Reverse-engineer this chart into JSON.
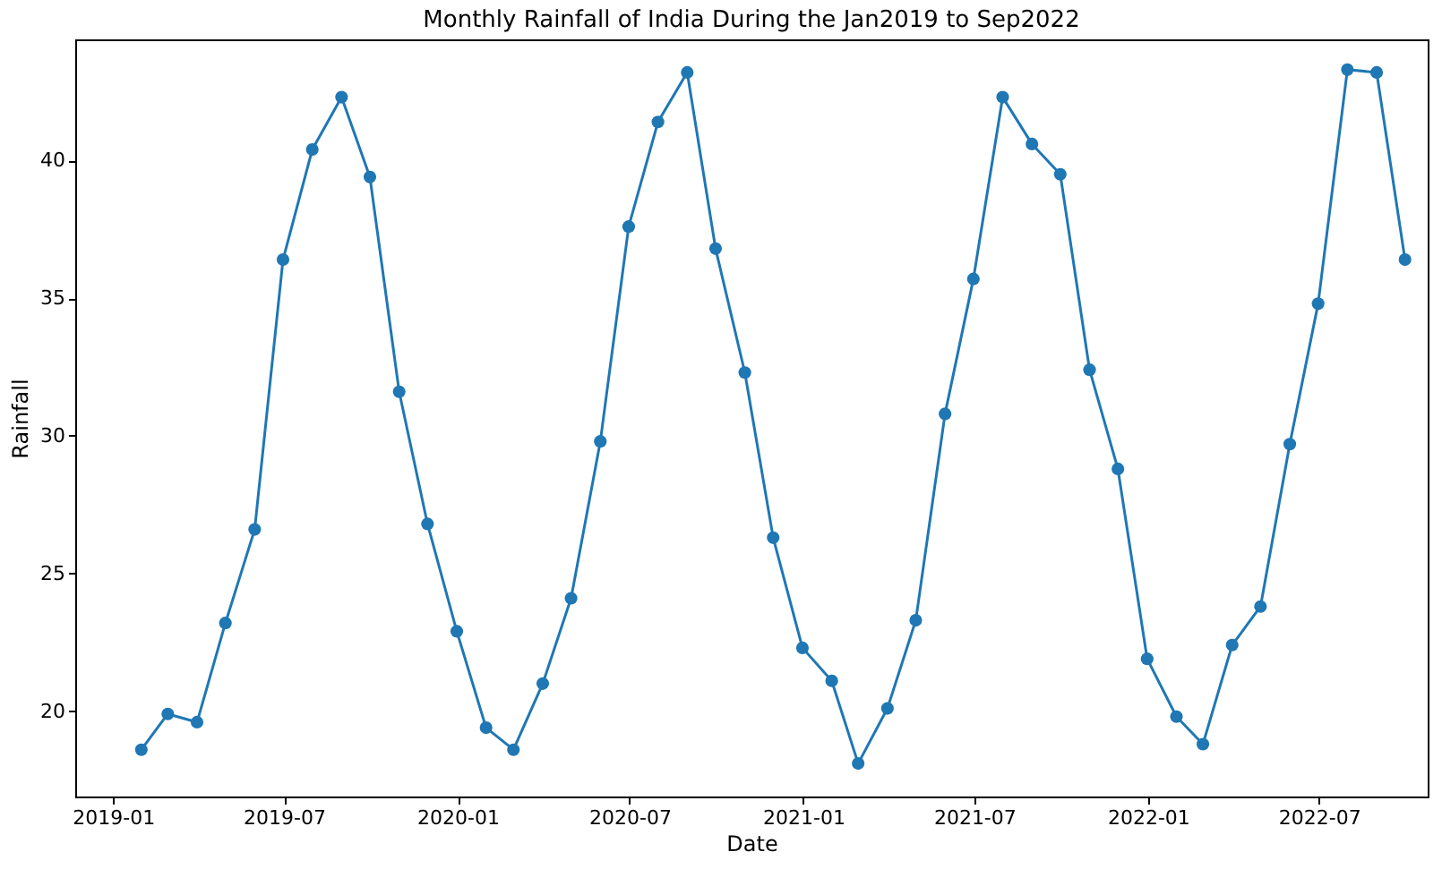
{
  "chart_data": {
    "type": "line",
    "title": "Monthly Rainfall of India During the Jan2019 to Sep2022",
    "xlabel": "Date",
    "ylabel": "Rainfall",
    "x": [
      "2019-01-31",
      "2019-02-28",
      "2019-03-31",
      "2019-04-30",
      "2019-05-31",
      "2019-06-30",
      "2019-07-31",
      "2019-08-31",
      "2019-09-30",
      "2019-10-31",
      "2019-11-30",
      "2019-12-31",
      "2020-01-31",
      "2020-02-29",
      "2020-03-31",
      "2020-04-30",
      "2020-05-31",
      "2020-06-30",
      "2020-07-31",
      "2020-08-31",
      "2020-09-30",
      "2020-10-31",
      "2020-11-30",
      "2020-12-31",
      "2021-01-31",
      "2021-02-28",
      "2021-03-31",
      "2021-04-30",
      "2021-05-31",
      "2021-06-30",
      "2021-07-31",
      "2021-08-31",
      "2021-09-30",
      "2021-10-31",
      "2021-11-30",
      "2021-12-31",
      "2022-01-31",
      "2022-02-28",
      "2022-03-31",
      "2022-04-30",
      "2022-05-31",
      "2022-06-30",
      "2022-07-31",
      "2022-08-31",
      "2022-09-30"
    ],
    "series": [
      {
        "color": "#1f77b4",
        "values": [
          18.6,
          19.9,
          19.6,
          23.2,
          26.6,
          36.4,
          40.4,
          42.3,
          39.4,
          31.6,
          26.8,
          22.9,
          19.4,
          18.6,
          21.0,
          24.1,
          29.8,
          37.6,
          41.4,
          43.2,
          36.8,
          32.3,
          26.3,
          22.3,
          21.1,
          18.1,
          20.1,
          23.3,
          30.8,
          35.7,
          42.3,
          40.6,
          39.5,
          32.4,
          28.8,
          21.9,
          19.8,
          18.8,
          22.4,
          23.8,
          29.7,
          34.8,
          43.3,
          43.2,
          36.4
        ]
      }
    ],
    "xlim": [
      "2018-11-22",
      "2022-10-24"
    ],
    "xticks": [
      {
        "value": "2019-01-01",
        "label": "2019-01"
      },
      {
        "value": "2019-07-01",
        "label": "2019-07"
      },
      {
        "value": "2020-01-01",
        "label": "2020-01"
      },
      {
        "value": "2020-07-01",
        "label": "2020-07"
      },
      {
        "value": "2021-01-01",
        "label": "2021-01"
      },
      {
        "value": "2021-07-01",
        "label": "2021-07"
      },
      {
        "value": "2022-01-01",
        "label": "2022-01"
      },
      {
        "value": "2022-07-01",
        "label": "2022-07"
      }
    ],
    "ylim": [
      16.9,
      44.4
    ],
    "yticks": [
      20,
      25,
      30,
      35,
      40
    ],
    "grid": false,
    "marker": "circle",
    "line_style": "solid"
  }
}
